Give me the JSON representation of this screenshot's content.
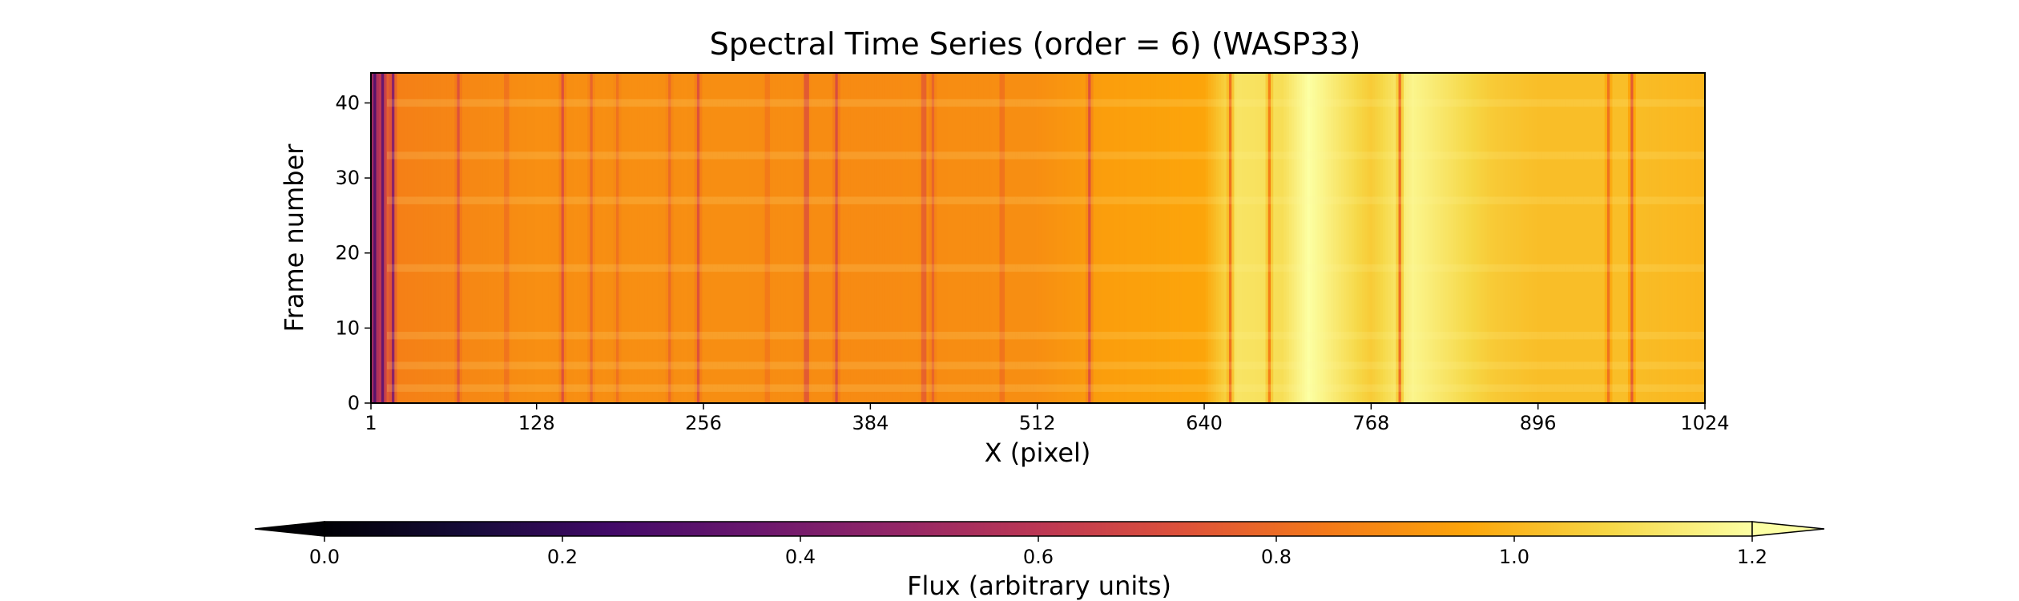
{
  "chart_data": {
    "type": "heatmap",
    "title": "Spectral Time Series (order = 6) (WASP33)",
    "xlabel": "X (pixel)",
    "ylabel": "Frame number",
    "xlim": [
      1,
      1024
    ],
    "ylim": [
      0,
      44
    ],
    "xticks": [
      1,
      128,
      256,
      384,
      512,
      640,
      768,
      896,
      1024
    ],
    "yticks": [
      0,
      10,
      20,
      30,
      40
    ],
    "colormap": "inferno",
    "colorbar": {
      "label": "Flux (arbitrary units)",
      "range": [
        0.0,
        1.2
      ],
      "ticks": [
        0.0,
        0.2,
        0.4,
        0.6,
        0.8,
        1.0,
        1.2
      ],
      "extend": "both",
      "orientation": "horizontal"
    },
    "baseline_flux": [
      {
        "x": 1,
        "flux": 0.55
      },
      {
        "x": 20,
        "flux": 0.86
      },
      {
        "x": 128,
        "flux": 0.9
      },
      {
        "x": 256,
        "flux": 0.9
      },
      {
        "x": 384,
        "flux": 0.89
      },
      {
        "x": 512,
        "flux": 0.9
      },
      {
        "x": 560,
        "flux": 0.94
      },
      {
        "x": 640,
        "flux": 0.96
      },
      {
        "x": 665,
        "flux": 1.12
      },
      {
        "x": 700,
        "flux": 1.1
      },
      {
        "x": 720,
        "flux": 1.2
      },
      {
        "x": 768,
        "flux": 1.05
      },
      {
        "x": 800,
        "flux": 1.17
      },
      {
        "x": 860,
        "flux": 1.05
      },
      {
        "x": 896,
        "flux": 1.02
      },
      {
        "x": 960,
        "flux": 1.02
      },
      {
        "x": 1024,
        "flux": 1.0
      }
    ],
    "absorption_lines": [
      {
        "x": 4,
        "flux": 0.3
      },
      {
        "x": 10,
        "flux": 0.35
      },
      {
        "x": 18,
        "flux": 0.45
      },
      {
        "x": 68,
        "flux": 0.72
      },
      {
        "x": 105,
        "flux": 0.8
      },
      {
        "x": 148,
        "flux": 0.72
      },
      {
        "x": 170,
        "flux": 0.78
      },
      {
        "x": 190,
        "flux": 0.82
      },
      {
        "x": 230,
        "flux": 0.8
      },
      {
        "x": 252,
        "flux": 0.72
      },
      {
        "x": 305,
        "flux": 0.82
      },
      {
        "x": 335,
        "flux": 0.68
      },
      {
        "x": 358,
        "flux": 0.7
      },
      {
        "x": 425,
        "flux": 0.72
      },
      {
        "x": 432,
        "flux": 0.78
      },
      {
        "x": 485,
        "flux": 0.8
      },
      {
        "x": 552,
        "flux": 0.72
      },
      {
        "x": 660,
        "flux": 0.82
      },
      {
        "x": 690,
        "flux": 0.86
      },
      {
        "x": 790,
        "flux": 0.8
      },
      {
        "x": 950,
        "flux": 0.82
      },
      {
        "x": 968,
        "flux": 0.75
      }
    ],
    "bright_frames": [
      2,
      5,
      9,
      18,
      27,
      33,
      40
    ]
  }
}
